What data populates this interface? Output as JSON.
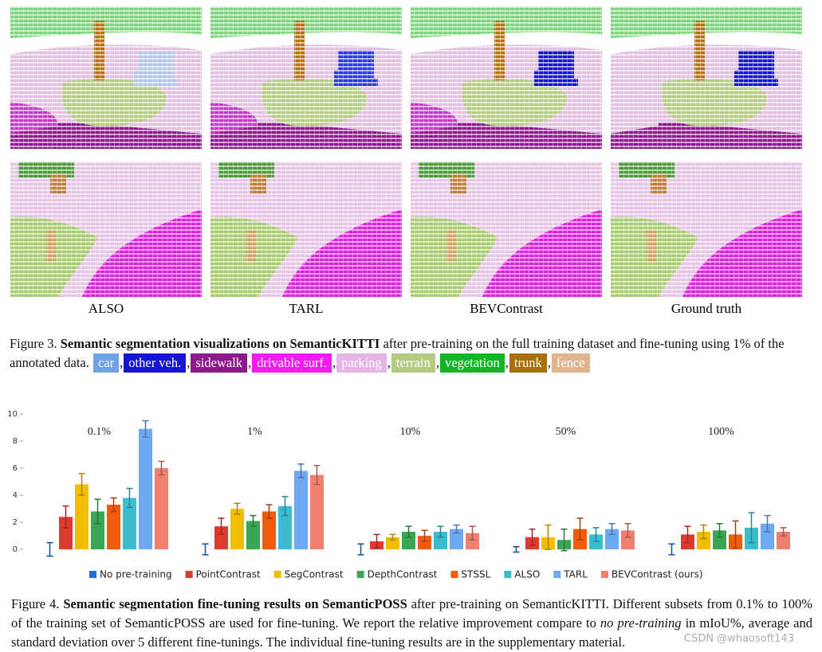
{
  "figure3": {
    "panel_labels": [
      "ALSO",
      "TARL",
      "BEVContrast",
      "Ground truth"
    ],
    "caption": {
      "label": "Figure 3.",
      "bold": "Semantic segmentation visualizations on SemanticKITTI",
      "text": "after pre-training on the full training dataset and fine-tuning using 1% of the annotated data."
    },
    "classes": [
      {
        "name": "car",
        "color": "#6fa3e6"
      },
      {
        "name": "other veh.",
        "color": "#1414d2"
      },
      {
        "name": "sidewalk",
        "color": "#8c1a8c"
      },
      {
        "name": "drivable surf.",
        "color": "#f01cf0"
      },
      {
        "name": "parking",
        "color": "#e6b4e6"
      },
      {
        "name": "terrain",
        "color": "#b4cc82"
      },
      {
        "name": "vegetation",
        "color": "#14b428"
      },
      {
        "name": "trunk",
        "color": "#a8700c"
      },
      {
        "name": "fence",
        "color": "#e0b48c"
      }
    ],
    "separator": ","
  },
  "chart_data": {
    "type": "bar",
    "categories": [
      "0.1%",
      "1%",
      "10%",
      "50%",
      "100%"
    ],
    "series": [
      {
        "name": "No pre-training",
        "color": "#1f6fe0",
        "values": [
          0,
          0,
          0,
          0,
          0
        ],
        "errors": [
          0.5,
          0.4,
          0.4,
          0.2,
          0.4
        ]
      },
      {
        "name": "PointContrast",
        "color": "#e03a30",
        "values": [
          2.4,
          1.7,
          0.6,
          0.9,
          1.1
        ],
        "errors": [
          0.8,
          0.6,
          0.5,
          0.6,
          0.6
        ]
      },
      {
        "name": "SegContrast",
        "color": "#f2bf00",
        "values": [
          4.8,
          3.0,
          0.9,
          0.9,
          1.3
        ],
        "errors": [
          0.8,
          0.4,
          0.2,
          0.9,
          0.5
        ]
      },
      {
        "name": "DepthContrast",
        "color": "#3aa655",
        "values": [
          2.8,
          2.1,
          1.3,
          0.7,
          1.4
        ],
        "errors": [
          0.9,
          0.4,
          0.4,
          0.8,
          0.5
        ]
      },
      {
        "name": "STSSL",
        "color": "#f25a0c",
        "values": [
          3.3,
          2.8,
          1.0,
          1.5,
          1.1
        ],
        "errors": [
          0.5,
          0.5,
          0.4,
          0.8,
          1.0
        ]
      },
      {
        "name": "ALSO",
        "color": "#3cbccf",
        "values": [
          3.8,
          3.2,
          1.3,
          1.1,
          1.6
        ],
        "errors": [
          0.7,
          0.7,
          0.4,
          0.5,
          1.1
        ]
      },
      {
        "name": "TARL",
        "color": "#6fa8f2",
        "values": [
          8.9,
          5.8,
          1.5,
          1.5,
          1.9
        ],
        "errors": [
          0.6,
          0.5,
          0.3,
          0.4,
          0.6
        ]
      },
      {
        "name": "BEVContrast (ours)",
        "color": "#ee8070",
        "values": [
          6.0,
          5.5,
          1.2,
          1.4,
          1.3
        ],
        "errors": [
          0.5,
          0.7,
          0.5,
          0.5,
          0.3
        ]
      }
    ],
    "ylim": [
      -0.7,
      10
    ],
    "yticks": [
      0,
      2,
      4,
      6,
      8,
      10
    ]
  },
  "figure4": {
    "caption": {
      "label": "Figure 4.",
      "bold": "Semantic segmentation fine-tuning results on SemanticPOSS",
      "text": "after pre-training on SemanticKITTI. Different subsets from 0.1% to 100% of the training set of SemanticPOSS are used for fine-tuning. We report the relative improvement compare to",
      "italic": "no pre-training",
      "text2": "in mIoU%, average and standard deviation over 5 different fine-tunings. The individual fine-tuning results are in the supplementary material."
    }
  },
  "watermark": "CSDN @whaosoft143"
}
